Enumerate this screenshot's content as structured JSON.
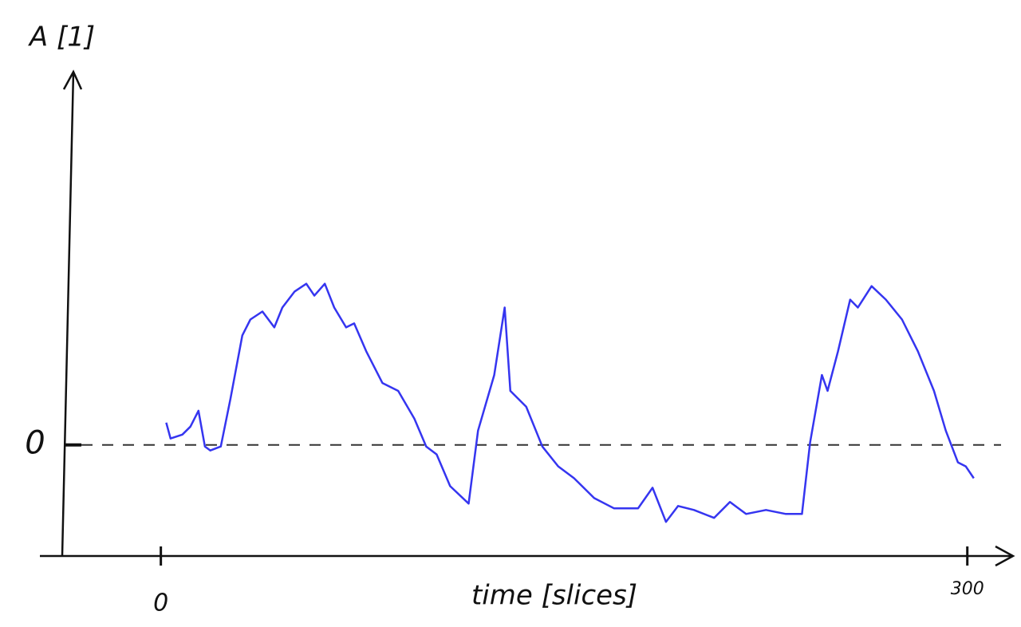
{
  "chart_data": {
    "type": "line",
    "y_label": "A [1]",
    "x_label": "time [slices]",
    "xlim": [
      -45,
      317
    ],
    "ylim": [
      -1.4,
      4.7
    ],
    "xticks": [
      0,
      300
    ],
    "yticks": [
      0
    ],
    "grid": true,
    "grid_style": "dashed",
    "series": [
      {
        "color": "#3535f0",
        "x": [
          2,
          3.6,
          8,
          11,
          14,
          16.4,
          18.4,
          22.3,
          25.9,
          30.3,
          33.3,
          37.8,
          42.2,
          45.2,
          49.7,
          54.1,
          57.1,
          61,
          64.5,
          68.9,
          71.9,
          76.4,
          82.4,
          88.3,
          94.3,
          98.7,
          102.6,
          107.6,
          114.5,
          118,
          124,
          127.9,
          130,
          135.9,
          141.9,
          147.8,
          153.7,
          161.2,
          168.6,
          177.5,
          182.9,
          187.9,
          192.4,
          198.3,
          205.8,
          211.7,
          217.7,
          225.1,
          232.5,
          238.5,
          241.5,
          245.9,
          248,
          251.9,
          256.4,
          259.3,
          264.4,
          269.7,
          275.7,
          281.6,
          287.6,
          292,
          296.5,
          299.4,
          302.4
        ],
        "values": [
          0.28,
          0.08,
          0.13,
          0.23,
          0.43,
          -0.02,
          -0.07,
          -0.02,
          0.58,
          1.38,
          1.58,
          1.68,
          1.48,
          1.73,
          1.93,
          2.03,
          1.88,
          2.03,
          1.73,
          1.48,
          1.53,
          1.18,
          0.78,
          0.68,
          0.33,
          -0.02,
          -0.12,
          -0.52,
          -0.74,
          0.18,
          0.88,
          1.73,
          0.68,
          0.48,
          -0.02,
          -0.27,
          -0.42,
          -0.67,
          -0.8,
          -0.8,
          -0.54,
          -0.97,
          -0.77,
          -0.82,
          -0.92,
          -0.72,
          -0.87,
          -0.82,
          -0.87,
          -0.87,
          0.03,
          0.88,
          0.68,
          1.18,
          1.83,
          1.73,
          2.0,
          1.83,
          1.58,
          1.18,
          0.68,
          0.18,
          -0.22,
          -0.27,
          -0.42
        ]
      }
    ]
  }
}
